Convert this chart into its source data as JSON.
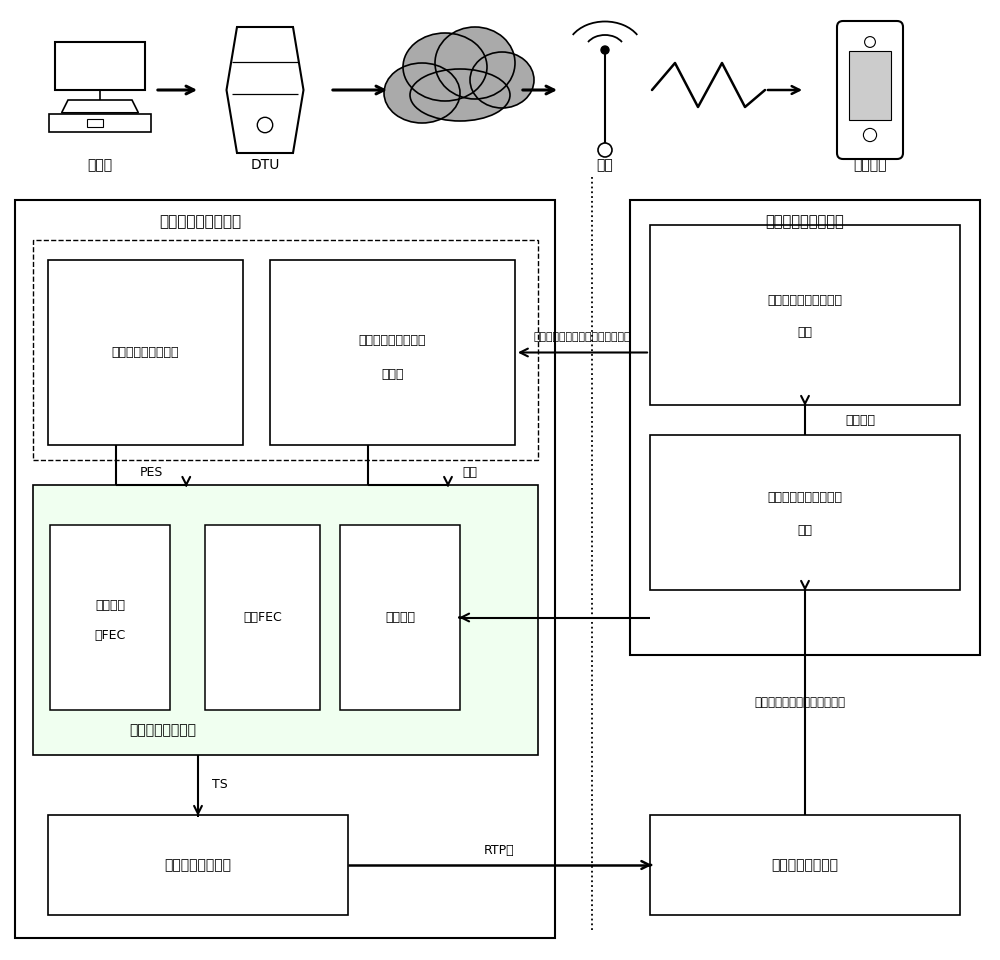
{
  "fig_width": 10.0,
  "fig_height": 9.6,
  "bg_color": "#ffffff",
  "label_zhibo": "直播源",
  "label_dtu": "DTU",
  "label_jizhan": "基站",
  "label_mobile": "移动终端",
  "label_send_module": "发送端差错控制模块",
  "label_recv_module": "接收端差错控制模块",
  "label_zhibo_recv": "直播视频流接收模块",
  "label_mobile_loss_1": "移动网络丢包状态判",
  "label_mobile_loss_2": "断模块",
  "label_fec_adaptive_1": "自适应动",
  "label_fec_adaptive_2": "态FEC",
  "label_fec_static": "静态FEC",
  "label_retransmit": "主动重传",
  "label_error_policy": "差错控制决策模块",
  "label_video_send": "视频数据发送模块",
  "label_mobile_param_1": "移动网络状态参数反馈",
  "label_mobile_param_2": "模块",
  "label_loss_type_classify_1": "视频数据丢包类型区分",
  "label_loss_type_classify_2": "模块",
  "label_video_recv": "视频数据接收模块",
  "label_PES": "PES",
  "label_TS": "TS",
  "label_RTP": "RTP包",
  "label_action": "动作",
  "label_feedback": "信噪比、无线丢包率、拥塞丢包率",
  "label_loss_type": "丢包类型",
  "label_continuous": "连续丢包个数、单向传输时延"
}
